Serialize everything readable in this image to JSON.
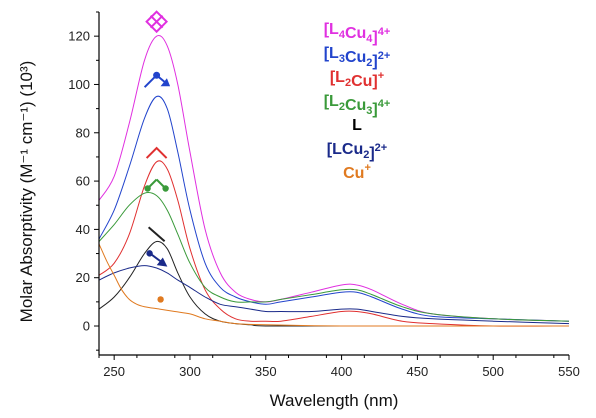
{
  "chart_data": {
    "type": "line",
    "xlabel": "Wavelength (nm)",
    "ylabel": "Molar Absorptivity (M⁻¹ cm⁻¹) (10³)",
    "xlim": [
      240,
      550
    ],
    "ylim": [
      -12,
      130
    ],
    "x_ticks": [
      250,
      300,
      350,
      400,
      450,
      500,
      550
    ],
    "y_ticks": [
      0,
      20,
      40,
      60,
      80,
      100,
      120
    ],
    "grid": false,
    "legend_position": "top-right",
    "series": [
      {
        "name": "[L4Cu4]4+",
        "legend_parts": [
          [
            "[",
            "n"
          ],
          [
            "L",
            "b"
          ],
          [
            "4",
            "sub"
          ],
          [
            "Cu",
            "n"
          ],
          [
            "4",
            "sub"
          ],
          [
            "]",
            "n"
          ],
          [
            "4+",
            "sup"
          ]
        ],
        "color": "#e030e0",
        "marker": "diamond",
        "x": [
          240,
          250,
          260,
          270,
          278,
          285,
          292,
          300,
          310,
          320,
          330,
          340,
          350,
          360,
          380,
          400,
          410,
          420,
          440,
          460,
          500,
          550
        ],
        "y": [
          52,
          62,
          84,
          110,
          120,
          116,
          100,
          72,
          40,
          22,
          14,
          11,
          10,
          11,
          14,
          17,
          17,
          15,
          9,
          5,
          3,
          2
        ]
      },
      {
        "name": "[L3Cu2]2+",
        "legend_parts": [
          [
            "[",
            "n"
          ],
          [
            "L",
            "b"
          ],
          [
            "3",
            "sub"
          ],
          [
            "Cu",
            "n"
          ],
          [
            "2",
            "sub"
          ],
          [
            "]",
            "n"
          ],
          [
            "2+",
            "sup"
          ]
        ],
        "color": "#2244cc",
        "marker": "arrow-split",
        "x": [
          240,
          250,
          260,
          270,
          278,
          285,
          292,
          300,
          310,
          320,
          330,
          340,
          350,
          360,
          380,
          400,
          410,
          420,
          440,
          460,
          500,
          550
        ],
        "y": [
          36,
          48,
          66,
          86,
          95,
          90,
          72,
          48,
          26,
          16,
          12,
          10,
          9,
          10,
          12,
          14,
          14,
          12,
          7,
          4,
          3,
          2
        ]
      },
      {
        "name": "[L2Cu]+",
        "legend_parts": [
          [
            "[",
            "n"
          ],
          [
            "L",
            "b"
          ],
          [
            "2",
            "sub"
          ],
          [
            "Cu",
            "n"
          ],
          [
            "]",
            "n"
          ],
          [
            "+",
            "sup"
          ]
        ],
        "color": "#e03030",
        "marker": "caret",
        "x": [
          240,
          250,
          260,
          270,
          278,
          285,
          292,
          300,
          310,
          320,
          330,
          340,
          350,
          360,
          380,
          400,
          410,
          420,
          440,
          460,
          500,
          550
        ],
        "y": [
          21,
          26,
          38,
          58,
          68,
          65,
          52,
          32,
          15,
          7,
          3,
          2,
          2,
          2,
          4,
          6,
          6,
          5,
          2,
          1,
          0,
          0
        ]
      },
      {
        "name": "[L2Cu3]4+",
        "legend_parts": [
          [
            "[",
            "n"
          ],
          [
            "L",
            "b"
          ],
          [
            "2",
            "sub"
          ],
          [
            "Cu",
            "n"
          ],
          [
            "3",
            "sub"
          ],
          [
            "]",
            "n"
          ],
          [
            "4+",
            "sup"
          ]
        ],
        "color": "#3a9a3a",
        "marker": "arrow-down-left",
        "x": [
          240,
          250,
          260,
          270,
          278,
          285,
          292,
          300,
          310,
          320,
          330,
          340,
          350,
          360,
          380,
          400,
          410,
          420,
          440,
          460,
          500,
          550
        ],
        "y": [
          35,
          42,
          50,
          55,
          54,
          48,
          38,
          26,
          16,
          12,
          10,
          10,
          10,
          11,
          13,
          15,
          15,
          13,
          8,
          5,
          3,
          2
        ]
      },
      {
        "name": "L",
        "legend_parts": [
          [
            "L",
            "b"
          ]
        ],
        "color": "#222222",
        "marker": "slash",
        "x": [
          240,
          250,
          260,
          270,
          278,
          285,
          292,
          300,
          310,
          320,
          330,
          340,
          350,
          400,
          450,
          500,
          550
        ],
        "y": [
          7,
          12,
          20,
          30,
          35,
          32,
          22,
          12,
          5,
          2,
          1,
          0.5,
          0,
          0,
          0,
          0,
          0
        ]
      },
      {
        "name": "[LCu2]2+",
        "legend_parts": [
          [
            "[",
            "n"
          ],
          [
            "L",
            "b"
          ],
          [
            "Cu",
            "n"
          ],
          [
            "2",
            "sub"
          ],
          [
            "]",
            "n"
          ],
          [
            "2+",
            "sup"
          ]
        ],
        "color": "#1a2a8a",
        "marker": "arrow-both",
        "x": [
          240,
          250,
          260,
          270,
          278,
          285,
          292,
          300,
          310,
          320,
          330,
          340,
          350,
          360,
          380,
          400,
          410,
          420,
          440,
          460,
          500,
          550
        ],
        "y": [
          19,
          22,
          24,
          25,
          24,
          22,
          19,
          16,
          12,
          9,
          8,
          7,
          6,
          6,
          6,
          7,
          7,
          6,
          4,
          3,
          2,
          1
        ]
      },
      {
        "name": "Cu+",
        "legend_parts": [
          [
            "Cu",
            "n"
          ],
          [
            "+",
            "sup"
          ]
        ],
        "color": "#e07a20",
        "marker": "dot",
        "x": [
          240,
          245,
          250,
          255,
          260,
          265,
          270,
          280,
          290,
          300,
          310,
          320,
          330,
          350,
          400,
          450,
          500,
          550
        ],
        "y": [
          34,
          27,
          21,
          15,
          11,
          9,
          8,
          7,
          6,
          5,
          3,
          2,
          1,
          0.5,
          0,
          0,
          0,
          0
        ]
      }
    ]
  }
}
